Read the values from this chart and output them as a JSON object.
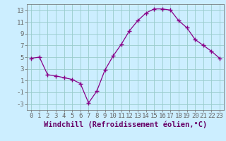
{
  "x": [
    0,
    1,
    2,
    3,
    4,
    5,
    6,
    7,
    8,
    9,
    10,
    11,
    12,
    13,
    14,
    15,
    16,
    17,
    18,
    19,
    20,
    21,
    22,
    23
  ],
  "y": [
    4.8,
    5.0,
    2.0,
    1.8,
    1.5,
    1.2,
    0.5,
    -2.8,
    -0.8,
    2.8,
    5.2,
    7.2,
    9.5,
    11.2,
    12.5,
    13.2,
    13.2,
    13.0,
    11.2,
    10.0,
    8.0,
    7.0,
    6.0,
    4.8
  ],
  "line_color": "#880088",
  "marker": "+",
  "markersize": 4,
  "linewidth": 0.9,
  "xlabel": "Windchill (Refroidissement éolien,°C)",
  "xlabel_fontsize": 7.5,
  "bg_color": "#cceeff",
  "plot_bg_color": "#cceeff",
  "grid_color": "#99cccc",
  "ylim": [
    -4,
    14
  ],
  "yticks": [
    -3,
    -1,
    1,
    3,
    5,
    7,
    9,
    11,
    13
  ],
  "xticks": [
    0,
    1,
    2,
    3,
    4,
    5,
    6,
    7,
    8,
    9,
    10,
    11,
    12,
    13,
    14,
    15,
    16,
    17,
    18,
    19,
    20,
    21,
    22,
    23
  ],
  "tick_fontsize": 6.5,
  "tick_color": "#660066",
  "spine_color": "#666666"
}
